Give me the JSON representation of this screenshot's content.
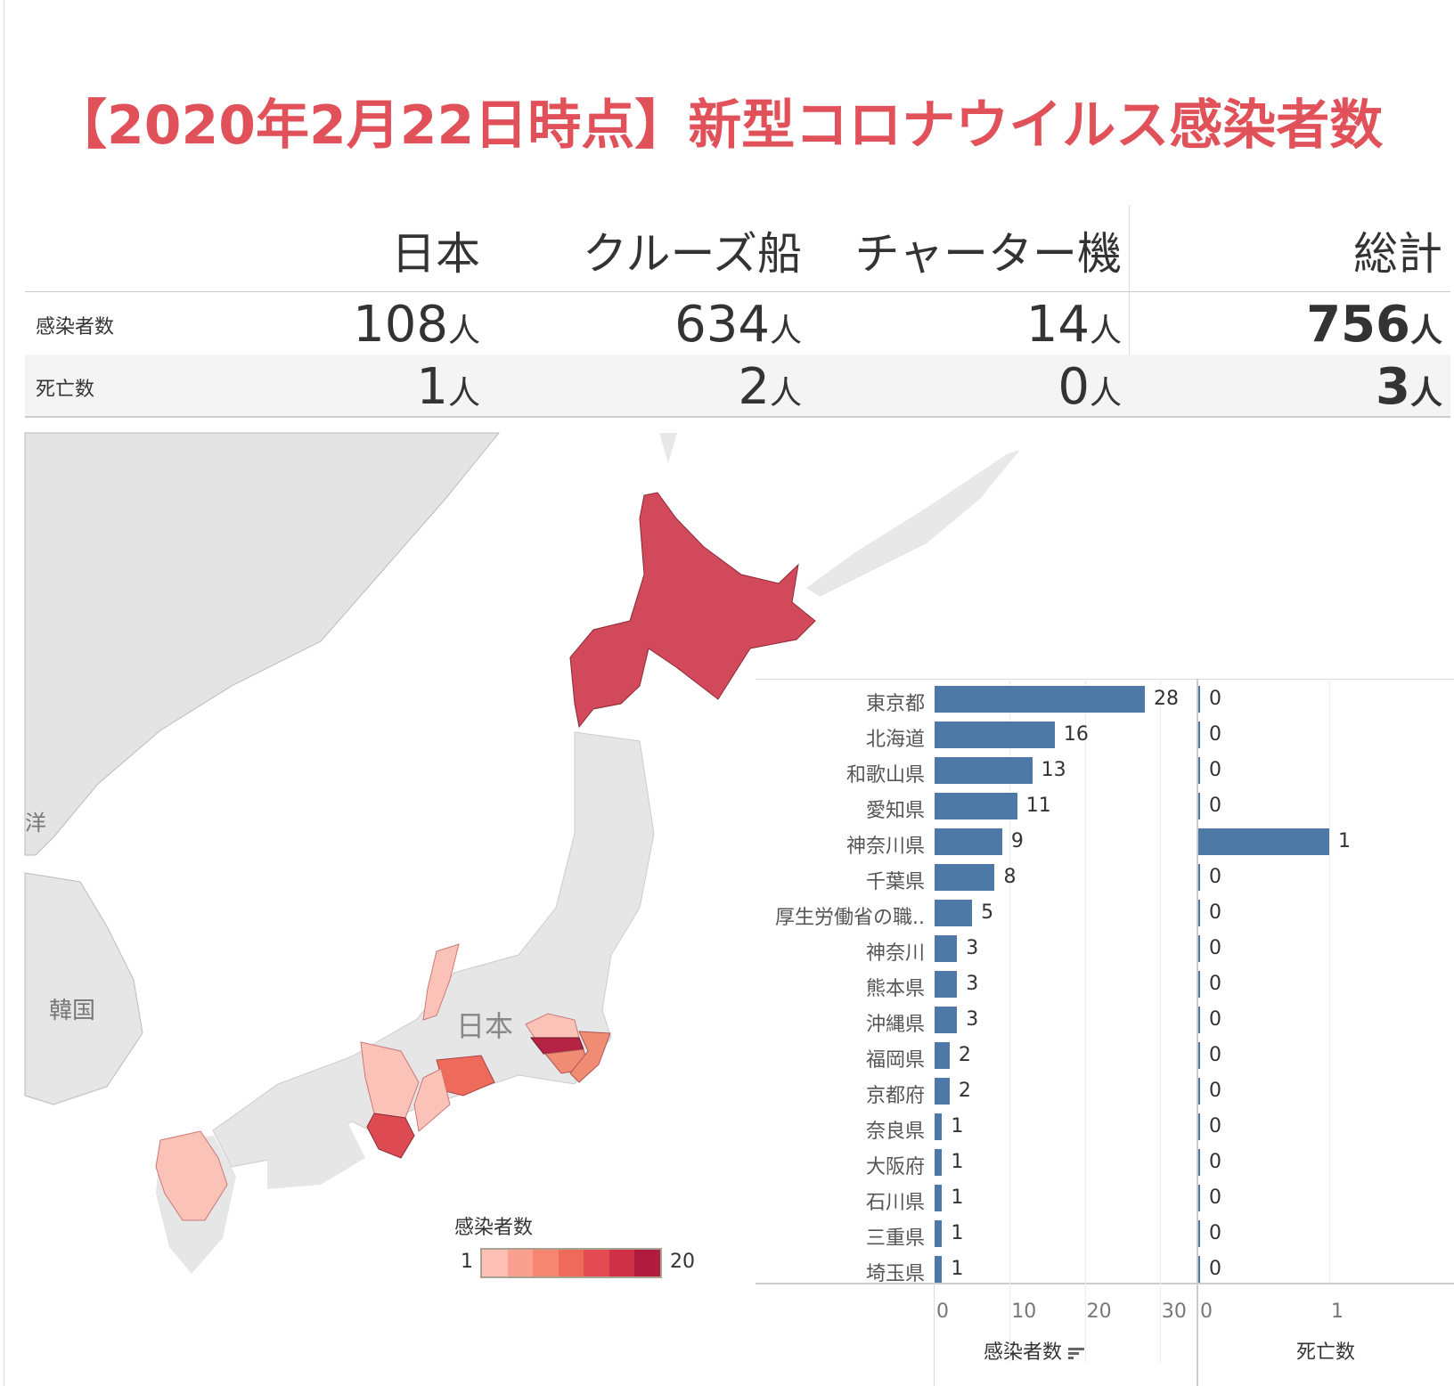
{
  "title": "【2020年2月22日時点】新型コロナウイルス感染者数",
  "summary_table": {
    "columns": [
      "日本",
      "クルーズ船",
      "チャーター機",
      "総計"
    ],
    "unit": "人",
    "rows": [
      {
        "label": "感染者数",
        "values": [
          "108",
          "634",
          "14",
          "756"
        ]
      },
      {
        "label": "死亡数",
        "values": [
          "1",
          "2",
          "0",
          "3"
        ]
      }
    ]
  },
  "map": {
    "labels": {
      "japan": "日本",
      "korea": "韓国",
      "edge": "洋"
    },
    "legend": {
      "title": "感染者数",
      "min": "1",
      "max": "20",
      "colors": [
        "#fdbfb4",
        "#f9a08e",
        "#f6866f",
        "#ee6a5a",
        "#e34a51",
        "#cf2f47",
        "#b01c40"
      ]
    },
    "colors": {
      "hokkaido": "#d2495c",
      "tokyo": "#b52345",
      "wakayama": "#de4a52",
      "aichi": "#ee6a5a",
      "chiba": "#f18c74",
      "light": "#fbc3b8",
      "land": "#e6e6e6"
    }
  },
  "chart_data": {
    "type": "bar",
    "orientation": "horizontal",
    "categories": [
      "東京都",
      "北海道",
      "和歌山県",
      "愛知県",
      "神奈川県",
      "千葉県",
      "厚生労働省の職..",
      "神奈川",
      "熊本県",
      "沖縄県",
      "福岡県",
      "京都府",
      "奈良県",
      "大阪府",
      "石川県",
      "三重県",
      "埼玉県"
    ],
    "series": [
      {
        "name": "感染者数",
        "values": [
          28,
          16,
          13,
          11,
          9,
          8,
          5,
          3,
          3,
          3,
          2,
          2,
          1,
          1,
          1,
          1,
          1
        ],
        "xlim": [
          0,
          35
        ],
        "ticks": [
          "0",
          "10",
          "20",
          "30"
        ],
        "sorted": true
      },
      {
        "name": "死亡数",
        "values": [
          0,
          0,
          0,
          0,
          1,
          0,
          0,
          0,
          0,
          0,
          0,
          0,
          0,
          0,
          0,
          0,
          0
        ],
        "xlim": [
          0,
          2
        ],
        "ticks": [
          "0",
          "1",
          "2"
        ]
      }
    ],
    "bar_color": "#4e79a7",
    "grid": true
  }
}
